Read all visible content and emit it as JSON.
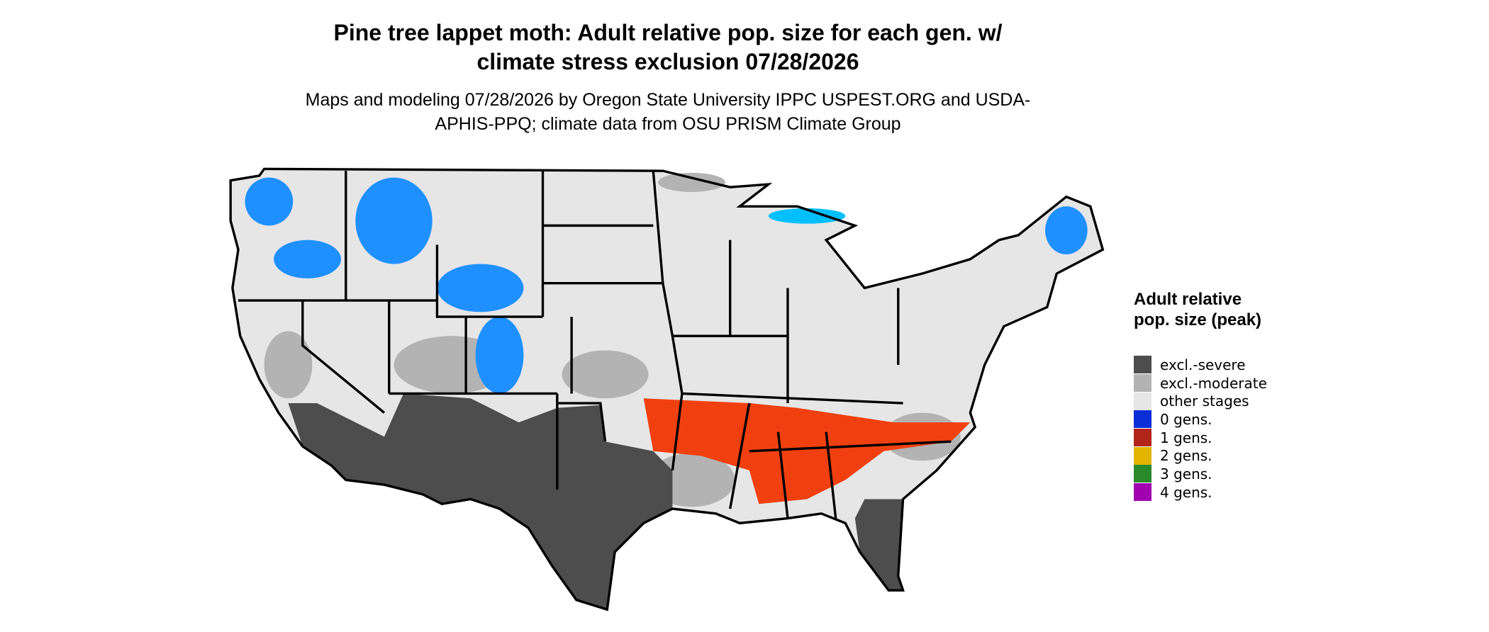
{
  "title": "Pine tree lappet moth: Adult relative pop. size for each gen. w/ climate stress exclusion 07/28/2026",
  "subtitle": "Maps and modeling 07/28/2026 by Oregon State University IPPC USPEST.ORG and USDA-APHIS-PPQ; climate data from OSU PRISM Climate Group",
  "legend": {
    "title": "Adult relative pop. size (peak)",
    "items": [
      {
        "label": "excl.-severe",
        "color": "#4d4d4d"
      },
      {
        "label": "excl.-moderate",
        "color": "#b3b3b3"
      },
      {
        "label": "other stages",
        "color": "#e6e6e6"
      },
      {
        "label": "0 gens.",
        "color": "#0a2fd6"
      },
      {
        "label": "1 gens.",
        "color": "#b2251a"
      },
      {
        "label": "2 gens.",
        "color": "#e0b400"
      },
      {
        "label": "3 gens.",
        "color": "#2a8a2a"
      },
      {
        "label": "4 gens.",
        "color": "#a000b0"
      }
    ]
  }
}
